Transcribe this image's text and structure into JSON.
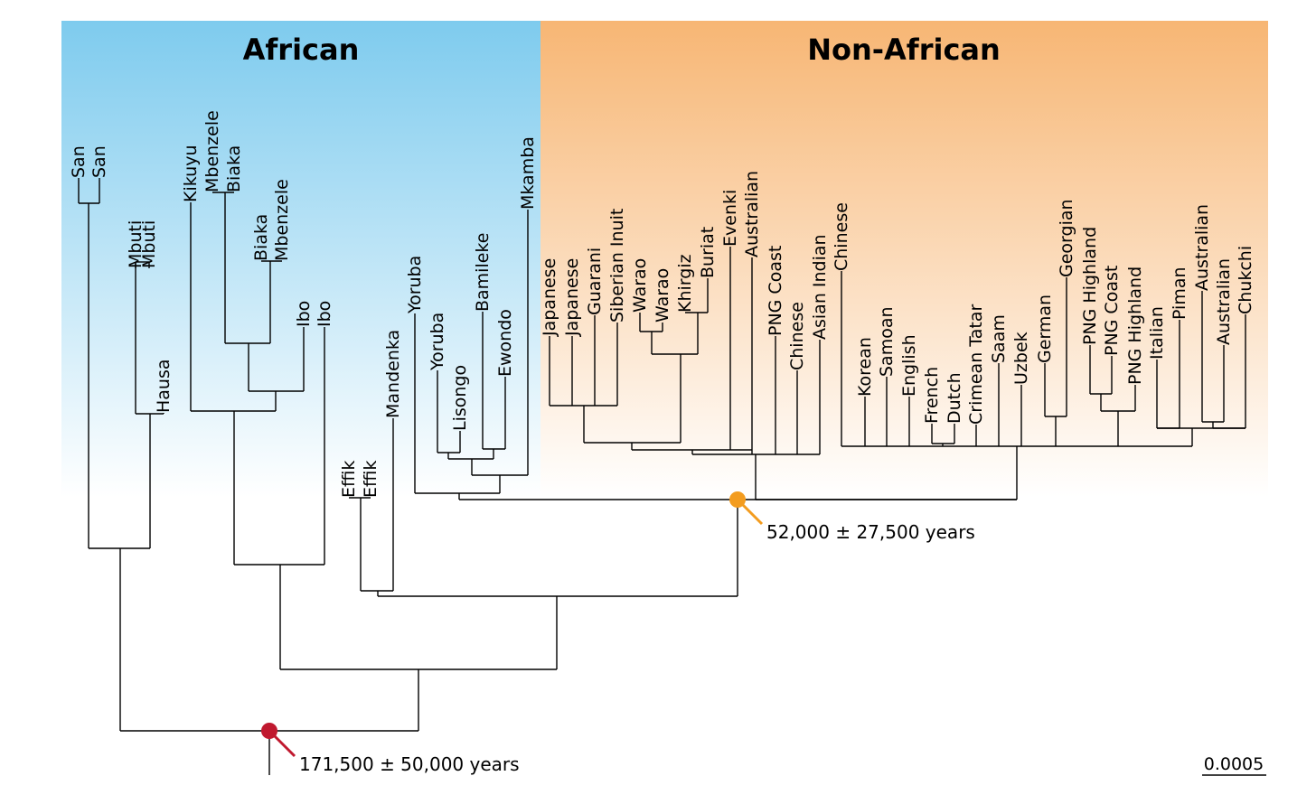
{
  "regions": [
    {
      "title": "African",
      "color_top": "#7ecbee",
      "color_bottom": "#ffffff"
    },
    {
      "title": "Non-African",
      "color_top": "#f7b674",
      "color_bottom": "#ffffff"
    }
  ],
  "leaves": [
    "San",
    "San",
    "Mbuti",
    "Mbuti",
    "Hausa",
    "Kikuyu",
    "Mbenzele",
    "Biaka",
    "Biaka",
    "Mbenzele",
    "Ibo",
    "Ibo",
    "Effik",
    "Effik",
    "Mandenka",
    "Yoruba",
    "Yoruba",
    "Lisongo",
    "Bamileke",
    "Ewondo",
    "Mkamba",
    "Japanese",
    "Japanese",
    "Guarani",
    "Siberian Inuit",
    "Warao",
    "Warao",
    "Khirgiz",
    "Buriat",
    "Evenki",
    "Australian",
    "PNG Coast",
    "Chinese",
    "Asian Indian",
    "Chinese",
    "Korean",
    "Samoan",
    "English",
    "French",
    "Dutch",
    "Crimean Tatar",
    "Saam",
    "Uzbek",
    "German",
    "Georgian",
    "PNG Highland",
    "PNG Coast",
    "PNG Highland",
    "Italian",
    "Piman",
    "Australian",
    "Australian",
    "Chukchi"
  ],
  "nodes": {
    "root": {
      "label": "171,500 ± 50,000 years",
      "color": "#c0192f"
    },
    "out_of_africa": {
      "label": "52,000 ± 27,500 years",
      "color": "#f39c1f"
    }
  },
  "scale_bar": {
    "label": "0.0005"
  }
}
